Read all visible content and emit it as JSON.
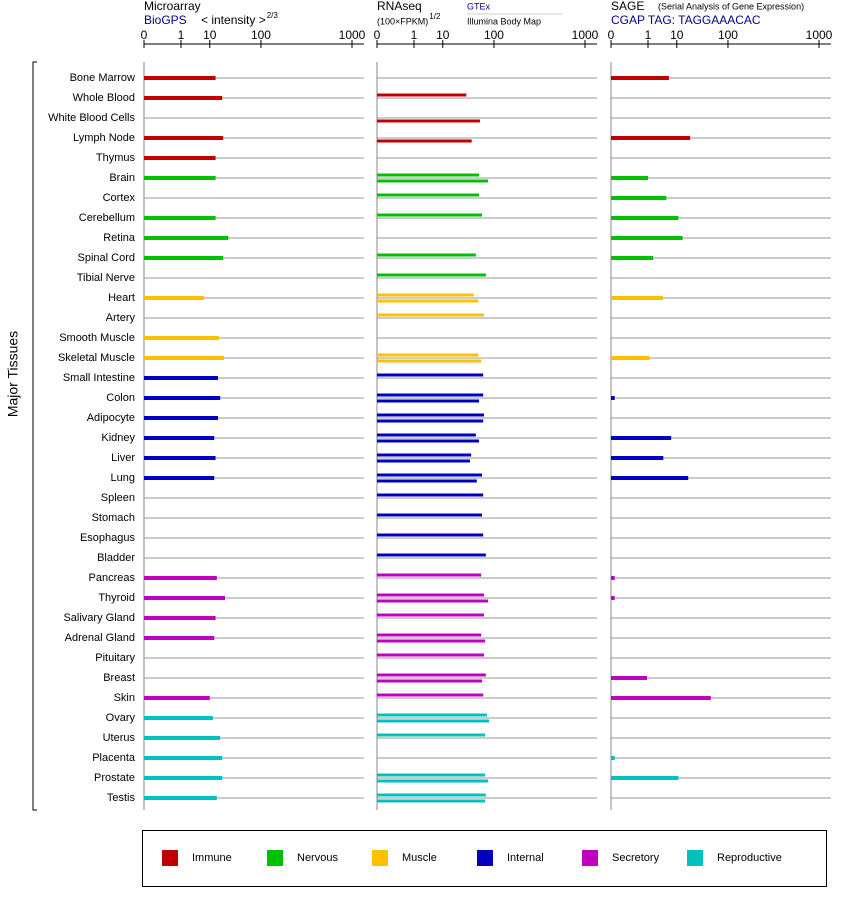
{
  "y_axis_label": "Major Tissues",
  "tissue_groups": [
    {
      "name": "Immune",
      "color": "#c00000",
      "tissues": [
        "Bone Marrow",
        "Whole Blood",
        "White Blood Cells",
        "Lymph Node",
        "Thymus"
      ]
    },
    {
      "name": "Nervous",
      "color": "#00c000",
      "tissues": [
        "Brain",
        "Cortex",
        "Cerebellum",
        "Retina",
        "Spinal Cord",
        "Tibial Nerve"
      ]
    },
    {
      "name": "Muscle",
      "color": "#ffc000",
      "tissues": [
        "Heart",
        "Artery",
        "Smooth Muscle",
        "Skeletal Muscle"
      ]
    },
    {
      "name": "Internal",
      "color": "#0000c0",
      "tissues": [
        "Small Intestine",
        "Colon",
        "Adipocyte",
        "Kidney",
        "Liver",
        "Lung",
        "Spleen",
        "Stomach",
        "Esophagus",
        "Bladder"
      ]
    },
    {
      "name": "Secretory",
      "color": "#c000c0",
      "tissues": [
        "Pancreas",
        "Thyroid",
        "Salivary Gland",
        "Adrenal Gland",
        "Pituitary",
        "Breast",
        "Skin"
      ]
    },
    {
      "name": "Reproductive",
      "color": "#00c0c0",
      "tissues": [
        "Ovary",
        "Uterus",
        "Placenta",
        "Prostate",
        "Testis"
      ]
    }
  ],
  "chart_data": [
    {
      "type": "bar",
      "title": "Microarray",
      "subtitle": "BioGPS",
      "x_label": "< intensity >",
      "x_label_exponent": "2/3",
      "xlim": [
        0,
        1000
      ],
      "xticks": [
        0,
        1,
        10,
        100,
        1000
      ],
      "values": [
        14,
        20,
        null,
        21,
        14,
        14,
        null,
        14,
        27,
        21,
        null,
        7,
        null,
        17,
        22,
        16,
        18,
        16,
        13,
        14,
        13,
        null,
        null,
        null,
        null,
        15,
        23,
        14,
        13,
        null,
        null,
        10,
        12,
        18,
        20,
        20,
        15
      ]
    },
    {
      "type": "bar",
      "title": "RNAseq",
      "x_label": "(100×FPKM)",
      "x_label_exponent": "1/2",
      "xlim": [
        0,
        1000
      ],
      "xticks": [
        0,
        1,
        10,
        100,
        1000
      ],
      "series": [
        {
          "name": "GTEx",
          "values": [
            null,
            34,
            null,
            null,
            null,
            58,
            58,
            65,
            null,
            51,
            75,
            47,
            70,
            null,
            56,
            68,
            68,
            70,
            51,
            42,
            65,
            68,
            65,
            68,
            75,
            63,
            70,
            70,
            63,
            70,
            75,
            68,
            78,
            73,
            null,
            73,
            75
          ]
        },
        {
          "name": "Illumina Body Map",
          "values": [
            null,
            null,
            60,
            43,
            null,
            81,
            null,
            null,
            null,
            null,
            null,
            56,
            null,
            null,
            63,
            null,
            58,
            68,
            58,
            40,
            53,
            null,
            null,
            null,
            null,
            null,
            81,
            null,
            73,
            null,
            65,
            null,
            84,
            null,
            null,
            81,
            73
          ]
        }
      ]
    },
    {
      "type": "bar",
      "title": "SAGE",
      "note": "(Serial Analysis of Gene Expression)",
      "subtitle": "CGAP TAG: TAGGAAACAC",
      "xlim": [
        0,
        1000
      ],
      "xticks": [
        0,
        1,
        10,
        100,
        1000
      ],
      "values": [
        6,
        null,
        null,
        21,
        null,
        1,
        5,
        11,
        14,
        1.7,
        null,
        3.9,
        null,
        null,
        1.2,
        null,
        0.0001,
        null,
        7,
        4,
        19,
        null,
        null,
        null,
        null,
        0.0001,
        0.0001,
        null,
        null,
        null,
        0.9,
        53,
        null,
        null,
        0.0001,
        11,
        null
      ]
    }
  ]
}
